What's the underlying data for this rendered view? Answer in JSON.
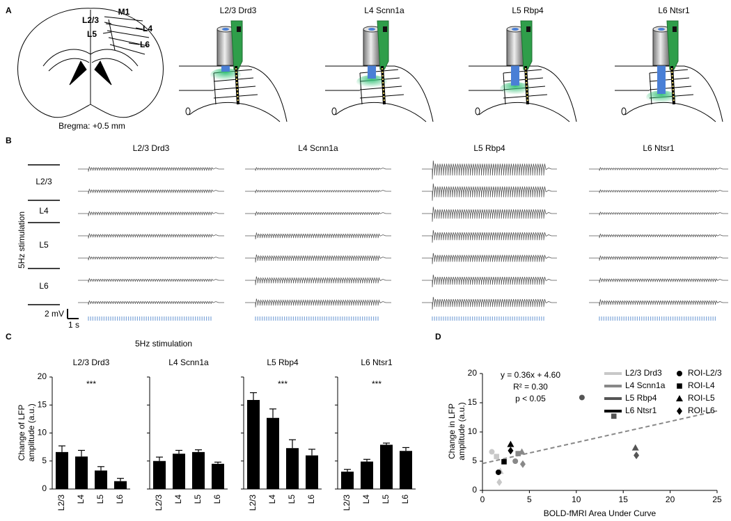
{
  "panel_labels": [
    "A",
    "B",
    "C",
    "D"
  ],
  "panel_a": {
    "atlas_labels": [
      "M1",
      "L2/3",
      "L4",
      "L5",
      "L6"
    ],
    "bregma": "Bregma: +0.5 mm",
    "titles": [
      "L2/3 Drd3",
      "L4 Scnn1a",
      "L5 Rbp4",
      "L6 Ntsr1"
    ]
  },
  "panel_c": {
    "title": "5Hz stimulation",
    "ylabel": "Change of LFP amplitude (a.u.)"
  },
  "chart_data": [
    {
      "type": "traces",
      "layer_labels": [
        "L2/3",
        "L4",
        "L5",
        "L6"
      ],
      "ylabel": "5Hz stimulation",
      "scale_y": {
        "value": 2,
        "label": "2 mV"
      },
      "scale_x": {
        "value": 1,
        "label": "1 s"
      },
      "trace_color": "#555555",
      "stimulus_color": "#7fa6d9",
      "series": [
        {
          "name": "L2/3 Drd3",
          "values": [
            0.6,
            0.6,
            0.6,
            0.6,
            0.5,
            0.5,
            0.5
          ]
        },
        {
          "name": "L4 Scnn1a",
          "values": [
            0.4,
            0.4,
            0.5,
            0.8,
            1.0,
            1.1,
            1.1
          ]
        },
        {
          "name": "L5 Rbp4",
          "values": [
            2.4,
            2.2,
            1.9,
            1.6,
            1.4,
            1.6,
            1.6
          ]
        },
        {
          "name": "L6 Ntsr1",
          "values": [
            0.4,
            0.4,
            0.4,
            0.5,
            0.6,
            0.6,
            0.8
          ]
        }
      ]
    },
    {
      "type": "bar",
      "title": "L2/3 Drd3",
      "categories": [
        "L2/3",
        "L4",
        "L5",
        "L6"
      ],
      "values": [
        6.6,
        5.8,
        3.3,
        1.4
      ],
      "errors": [
        1.1,
        1.1,
        0.7,
        0.5
      ],
      "annotation": "***",
      "color": "#000000",
      "ylim": [
        0,
        20
      ],
      "yticks": [
        0,
        5,
        10,
        15,
        20
      ]
    },
    {
      "type": "bar",
      "title": "L4 Scnn1a",
      "categories": [
        "L2/3",
        "L4",
        "L5",
        "L6"
      ],
      "values": [
        5.0,
        6.3,
        6.6,
        4.5
      ],
      "errors": [
        0.7,
        0.6,
        0.4,
        0.3
      ],
      "color": "#000000",
      "ylim": [
        0,
        20
      ],
      "yticks": [
        0,
        5,
        10,
        15,
        20
      ]
    },
    {
      "type": "bar",
      "title": "L5 Rbp4",
      "categories": [
        "L2/3",
        "L4",
        "L5",
        "L6"
      ],
      "values": [
        15.9,
        12.7,
        7.3,
        6.0
      ],
      "errors": [
        1.3,
        1.6,
        1.5,
        1.1
      ],
      "annotation": "***",
      "color": "#000000",
      "ylim": [
        0,
        20
      ],
      "yticks": [
        0,
        5,
        10,
        15,
        20
      ]
    },
    {
      "type": "bar",
      "title": "L6 Ntsr1",
      "categories": [
        "L2/3",
        "L4",
        "L5",
        "L6"
      ],
      "values": [
        3.1,
        4.9,
        7.9,
        6.8
      ],
      "errors": [
        0.4,
        0.4,
        0.3,
        0.6
      ],
      "annotation": "***",
      "color": "#000000",
      "ylim": [
        0,
        20
      ],
      "yticks": [
        0,
        5,
        10,
        15,
        20
      ]
    },
    {
      "type": "scatter",
      "xlabel": "BOLD-fMRI Area Under Curve",
      "ylabel": "Change in LFP amplitude (a.u.)",
      "xlim": [
        0,
        25
      ],
      "xticks": [
        0,
        5,
        10,
        15,
        20,
        25
      ],
      "ylim": [
        0,
        20
      ],
      "yticks": [
        0,
        5,
        10,
        15,
        20
      ],
      "fit": {
        "label": "y = 0.36x + 4.60",
        "slope": 0.36,
        "intercept": 4.6,
        "r2": "R² = 0.30",
        "p": "p < 0.05",
        "color": "#888888"
      },
      "markers": [
        {
          "name": "ROI-L2/3",
          "shape": "circle"
        },
        {
          "name": "ROI-L4",
          "shape": "square"
        },
        {
          "name": "ROI-L5",
          "shape": "triangle"
        },
        {
          "name": "ROI-L6",
          "shape": "diamond"
        }
      ],
      "series": [
        {
          "name": "L2/3 Drd3",
          "color": "#c8c8c8",
          "x": [
            1.0,
            1.5,
            1.9,
            1.8
          ],
          "values": [
            6.6,
            5.8,
            3.3,
            1.4
          ]
        },
        {
          "name": "L4 Scnn1a",
          "color": "#888888",
          "x": [
            3.5,
            3.8,
            4.2,
            4.3
          ],
          "values": [
            5.0,
            6.3,
            6.6,
            4.5
          ]
        },
        {
          "name": "L5 Rbp4",
          "color": "#555555",
          "x": [
            10.6,
            14.0,
            16.3,
            16.4
          ],
          "values": [
            15.9,
            12.7,
            7.3,
            6.0
          ]
        },
        {
          "name": "L6 Ntsr1",
          "color": "#000000",
          "x": [
            1.7,
            2.3,
            3.0,
            3.0
          ],
          "values": [
            3.1,
            4.9,
            7.9,
            6.8
          ]
        }
      ]
    }
  ]
}
